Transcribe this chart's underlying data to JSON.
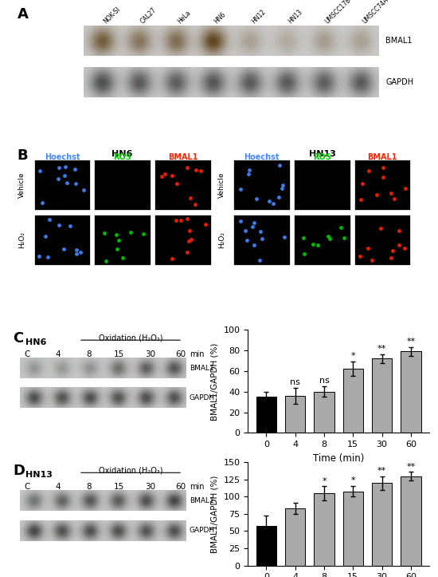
{
  "panel_A": {
    "label": "A",
    "cell_lines": [
      "NOK-SI",
      "CAL27",
      "HeLa",
      "HN6",
      "HN12",
      "HN13",
      "UMSCC17B",
      "UMSCC74A"
    ],
    "bmal1_intensities": [
      0.7,
      0.55,
      0.6,
      0.85,
      0.28,
      0.22,
      0.3,
      0.28
    ],
    "gapdh_intensities": [
      0.65,
      0.6,
      0.58,
      0.62,
      0.6,
      0.6,
      0.58,
      0.6
    ],
    "blot_bg": "#c8c8c4",
    "band_color_bmal1": "#5a3a2a",
    "band_color_gapdh": "#202020"
  },
  "panel_B": {
    "label": "B",
    "left_title": "HN6",
    "right_title": "HN13",
    "col_labels": [
      "Hoechst",
      "ROS",
      "BMAL1"
    ],
    "col_colors": [
      "#4488ff",
      "#00cc00",
      "#ff2200"
    ],
    "row_labels": [
      "Vehicle",
      "H₂O₂"
    ]
  },
  "panel_C": {
    "label": "C",
    "cell_line": "HN6",
    "treatment": "Oxidation (H₂O₂)",
    "lane_labels": [
      "C",
      "4",
      "8",
      "15",
      "30",
      "60"
    ],
    "time_unit": "min",
    "bmal1_intensities": [
      0.3,
      0.28,
      0.32,
      0.52,
      0.62,
      0.68
    ],
    "gapdh_intensities": [
      0.72,
      0.7,
      0.72,
      0.7,
      0.72,
      0.7
    ],
    "blot_bg": "#b0b0ac",
    "bar_values": [
      35,
      36,
      40,
      62,
      72,
      79
    ],
    "bar_errors": [
      5,
      8,
      5,
      7,
      4,
      4
    ],
    "bar_colors": [
      "#000000",
      "#aaaaaa",
      "#aaaaaa",
      "#aaaaaa",
      "#aaaaaa",
      "#aaaaaa"
    ],
    "x_labels": [
      "0",
      "4",
      "8",
      "15",
      "30",
      "60"
    ],
    "ylabel": "BMAL1/GAPDH (%)",
    "xlabel": "Time (min)",
    "ylim": [
      0,
      100
    ],
    "yticks": [
      0,
      20,
      40,
      60,
      80,
      100
    ],
    "significance": [
      "",
      "ns",
      "ns",
      "*",
      "**",
      "**"
    ]
  },
  "panel_D": {
    "label": "D",
    "cell_line": "HN13",
    "treatment": "Oxidation (H₂O₂)",
    "lane_labels": [
      "C",
      "4",
      "8",
      "15",
      "30",
      "60"
    ],
    "time_unit": "min",
    "bmal1_intensities": [
      0.5,
      0.6,
      0.68,
      0.65,
      0.72,
      0.78
    ],
    "gapdh_intensities": [
      0.78,
      0.72,
      0.72,
      0.72,
      0.7,
      0.72
    ],
    "blot_bg": "#b0b0ac",
    "bar_values": [
      58,
      83,
      105,
      108,
      120,
      130
    ],
    "bar_errors": [
      15,
      8,
      10,
      8,
      10,
      6
    ],
    "bar_colors": [
      "#000000",
      "#aaaaaa",
      "#aaaaaa",
      "#aaaaaa",
      "#aaaaaa",
      "#aaaaaa"
    ],
    "x_labels": [
      "0",
      "4",
      "8",
      "15",
      "30",
      "60"
    ],
    "ylabel": "BMAL1/GAPDH (%)",
    "xlabel": "Time (min)",
    "ylim": [
      0,
      150
    ],
    "yticks": [
      0,
      25,
      50,
      75,
      100,
      125,
      150
    ],
    "significance": [
      "",
      "",
      "*",
      "*",
      "**",
      "**"
    ]
  },
  "bg_color": "#ffffff",
  "text_color": "#000000"
}
